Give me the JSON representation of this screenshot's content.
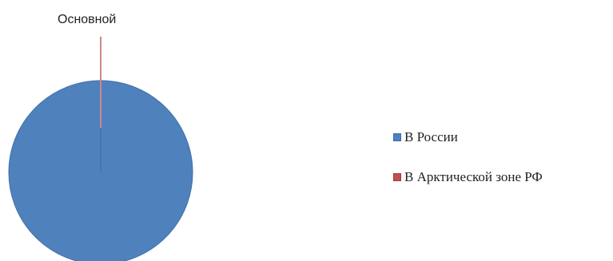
{
  "chart_data": {
    "type": "pie",
    "title": "",
    "categories": [
      "В России",
      "В Арктической зоне РФ"
    ],
    "values": [
      100,
      0
    ],
    "colors": [
      "#4f81bd",
      "#c0504d"
    ],
    "data_labels": [
      "",
      "Основной"
    ],
    "legend": {
      "placement": "right",
      "entries": [
        "В России",
        "В Арктической зоне РФ"
      ]
    }
  }
}
